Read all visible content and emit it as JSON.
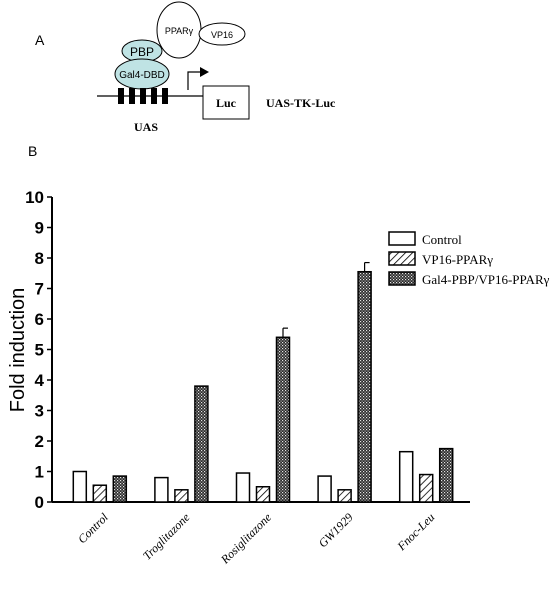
{
  "panels": {
    "a": "A",
    "b": "B"
  },
  "schematic": {
    "ppar_label": "PPARγ",
    "vp16_label": "VP16",
    "pbp_label": "PBP",
    "gal4_label": "Gal4-DBD",
    "luc_label": "Luc",
    "uas_label": "UAS",
    "reporter_label": "UAS-TK-Luc"
  },
  "chart_data": {
    "type": "bar",
    "ylabel": "Fold induction",
    "xlabel": "",
    "ylim": [
      0,
      10
    ],
    "yticks": [
      0,
      1,
      2,
      3,
      4,
      5,
      6,
      7,
      8,
      9,
      10
    ],
    "categories": [
      "Control",
      "Troglitazone",
      "Rosiglitazone",
      "GW1929",
      "Fnoc-Leu"
    ],
    "series": [
      {
        "name": "Control",
        "fill": "open",
        "values": [
          1.0,
          0.8,
          0.95,
          0.85,
          1.65
        ],
        "errors": [
          null,
          null,
          null,
          null,
          null
        ]
      },
      {
        "name": "VP16-PPARγ",
        "fill": "hatch",
        "values": [
          0.55,
          0.4,
          0.5,
          0.4,
          0.9
        ],
        "errors": [
          null,
          null,
          null,
          null,
          null
        ]
      },
      {
        "name": "Gal4-PBP/VP16-PPARγ",
        "fill": "dots",
        "values": [
          0.85,
          3.8,
          5.4,
          7.55,
          1.75
        ],
        "errors": [
          null,
          null,
          0.3,
          0.3,
          null
        ]
      }
    ],
    "legend_position": "right",
    "grid": false
  }
}
